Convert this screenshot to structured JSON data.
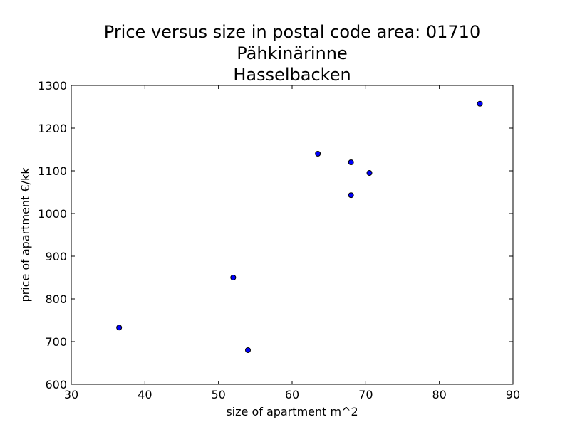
{
  "chart_data": {
    "type": "scatter",
    "title": "Price versus size in postal code area: 01710",
    "subtitle_lines": [
      "Pähkinärinne",
      "Hasselbacken"
    ],
    "xlabel": "size of apartment m^2",
    "ylabel": "price of apartment €/kk",
    "xlim": [
      30,
      90
    ],
    "ylim": [
      600,
      1300
    ],
    "x_ticks": [
      30,
      40,
      50,
      60,
      70,
      80,
      90
    ],
    "y_ticks": [
      600,
      700,
      800,
      900,
      1000,
      1100,
      1200,
      1300
    ],
    "grid": false,
    "marker_color": "#0000ff",
    "marker_edge_color": "#000000",
    "series": [
      {
        "x": [
          36.5,
          52.0,
          54.0,
          63.5,
          68.0,
          68.0,
          70.5,
          85.5
        ],
        "y": [
          733,
          850,
          680,
          1140,
          1120,
          1043,
          1095,
          1257
        ]
      }
    ]
  }
}
